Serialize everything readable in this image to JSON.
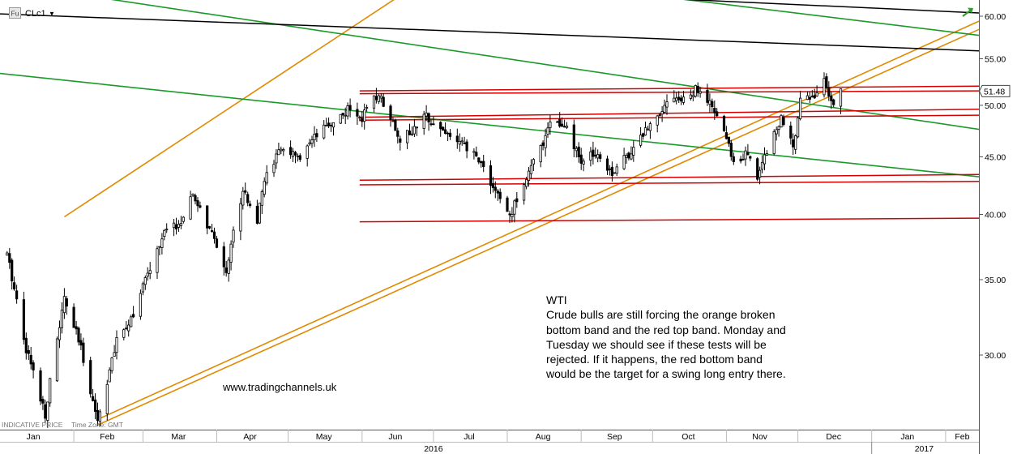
{
  "symbol": {
    "badge": "Fu",
    "ticker": "CLc1",
    "dropdown_glyph": "▼"
  },
  "footer": {
    "price_type": "INDICATIVE PRICE",
    "time_zone": "Time Zone: GMT"
  },
  "watermark": "www.tradingchannels.uk",
  "annotation": {
    "title": "WTI",
    "lines": [
      "Crude bulls are still forcing the orange broken",
      "bottom band and the red top band. Monday and",
      "Tuesday we should see if these tests will be",
      "rejected. If it happens, the red bottom band",
      "would be the target for a swing long entry there."
    ]
  },
  "price_flag": "51.48",
  "colors": {
    "price": "#000000",
    "orange_channel": "#e08a00",
    "green_line": "#1a9a2a",
    "red_band": "#d40000",
    "black_line": "#000000",
    "price_flag_border": "#444444",
    "trend_arrow": "#2fa02f"
  },
  "chart_data": {
    "type": "candlestick",
    "title": "",
    "xlabel": "",
    "ylabel": "",
    "y_scale": "log",
    "ylim": [
      25.0,
      63.0
    ],
    "y_ticks": [
      "60.00",
      "55.00",
      "50.00",
      "45.00",
      "40.00",
      "35.00",
      "30.00"
    ],
    "x_range": [
      "2016-01-01",
      "2017-02-15"
    ],
    "month_labels": [
      {
        "label": "Jan",
        "date": "2016-01-15"
      },
      {
        "label": "Feb",
        "date": "2016-02-15"
      },
      {
        "label": "Mar",
        "date": "2016-03-16"
      },
      {
        "label": "Apr",
        "date": "2016-04-15"
      },
      {
        "label": "May",
        "date": "2016-05-16"
      },
      {
        "label": "Jun",
        "date": "2016-06-15"
      },
      {
        "label": "Jul",
        "date": "2016-07-16"
      },
      {
        "label": "Aug",
        "date": "2016-08-16"
      },
      {
        "label": "Sep",
        "date": "2016-09-15"
      },
      {
        "label": "Oct",
        "date": "2016-10-16"
      },
      {
        "label": "Nov",
        "date": "2016-11-15"
      },
      {
        "label": "Dec",
        "date": "2016-12-16"
      },
      {
        "label": "Jan",
        "date": "2017-01-16"
      },
      {
        "label": "Feb",
        "date": "2017-02-08"
      }
    ],
    "month_boundaries": [
      "2016-02-01",
      "2016-03-01",
      "2016-04-01",
      "2016-05-01",
      "2016-06-01",
      "2016-07-01",
      "2016-08-01",
      "2016-09-01",
      "2016-10-01",
      "2016-11-01",
      "2016-12-01",
      "2017-01-01",
      "2017-02-01"
    ],
    "year_labels": [
      {
        "label": "2016",
        "date": "2016-07-01"
      },
      {
        "label": "2017",
        "date": "2017-01-23"
      }
    ],
    "last_price": 51.48,
    "price_anchors": [
      [
        "2016-01-04",
        36.8
      ],
      [
        "2016-01-12",
        30.4
      ],
      [
        "2016-01-20",
        26.6
      ],
      [
        "2016-01-28",
        33.6
      ],
      [
        "2016-02-03",
        30.9
      ],
      [
        "2016-02-11",
        26.2
      ],
      [
        "2016-02-19",
        30.8
      ],
      [
        "2016-02-26",
        32.7
      ],
      [
        "2016-03-04",
        35.8
      ],
      [
        "2016-03-10",
        38.5
      ],
      [
        "2016-03-18",
        39.5
      ],
      [
        "2016-03-22",
        41.6
      ],
      [
        "2016-03-30",
        38.3
      ],
      [
        "2016-04-05",
        35.7
      ],
      [
        "2016-04-12",
        42.2
      ],
      [
        "2016-04-18",
        39.5
      ],
      [
        "2016-04-22",
        43.7
      ],
      [
        "2016-04-29",
        45.9
      ],
      [
        "2016-05-06",
        44.6
      ],
      [
        "2016-05-12",
        46.7
      ],
      [
        "2016-05-19",
        48.2
      ],
      [
        "2016-05-26",
        49.5
      ],
      [
        "2016-06-01",
        48.8
      ],
      [
        "2016-06-08",
        51.2
      ],
      [
        "2016-06-13",
        48.9
      ],
      [
        "2016-06-17",
        46.7
      ],
      [
        "2016-06-24",
        47.7
      ],
      [
        "2016-06-28",
        49.0
      ],
      [
        "2016-07-05",
        47.5
      ],
      [
        "2016-07-12",
        46.3
      ],
      [
        "2016-07-20",
        44.8
      ],
      [
        "2016-07-27",
        41.9
      ],
      [
        "2016-08-02",
        39.8
      ],
      [
        "2016-08-08",
        42.8
      ],
      [
        "2016-08-15",
        45.7
      ],
      [
        "2016-08-19",
        48.6
      ],
      [
        "2016-08-26",
        47.5
      ],
      [
        "2016-09-01",
        44.4
      ],
      [
        "2016-09-07",
        45.5
      ],
      [
        "2016-09-14",
        43.6
      ],
      [
        "2016-09-21",
        45.3
      ],
      [
        "2016-09-29",
        47.8
      ],
      [
        "2016-10-05",
        49.8
      ],
      [
        "2016-10-10",
        51.0
      ],
      [
        "2016-10-14",
        50.4
      ],
      [
        "2016-10-19",
        51.6
      ],
      [
        "2016-10-24",
        50.5
      ],
      [
        "2016-10-31",
        47.5
      ],
      [
        "2016-11-04",
        44.4
      ],
      [
        "2016-11-09",
        45.4
      ],
      [
        "2016-11-14",
        43.3
      ],
      [
        "2016-11-18",
        45.7
      ],
      [
        "2016-11-24",
        48.7
      ],
      [
        "2016-11-29",
        45.7
      ],
      [
        "2016-12-02",
        50.9
      ],
      [
        "2016-12-07",
        50.8
      ],
      [
        "2016-12-12",
        52.4
      ],
      [
        "2016-12-15",
        50.2
      ],
      [
        "2016-12-19",
        51.5
      ]
    ],
    "trendlines": [
      {
        "group": "orange_channel",
        "from": [
          "2016-01-28",
          39.8
        ],
        "to": [
          "2016-06-19",
          63.0
        ]
      },
      {
        "group": "orange_channel",
        "from": [
          "2016-02-11",
          26.3
        ],
        "to": [
          "2017-02-15",
          59.4
        ]
      },
      {
        "group": "orange_channel",
        "from": [
          "2016-02-11",
          26.0
        ],
        "to": [
          "2017-02-15",
          58.4
        ]
      },
      {
        "group": "green_line",
        "from": [
          "2015-12-31",
          53.4
        ],
        "to": [
          "2017-02-15",
          43.2
        ]
      },
      {
        "group": "green_line",
        "from": [
          "2016-01-28",
          63.0
        ],
        "to": [
          "2017-02-15",
          47.6
        ]
      },
      {
        "group": "green_line",
        "from": [
          "2016-09-20",
          63.0
        ],
        "to": [
          "2017-02-15",
          57.7
        ]
      },
      {
        "group": "green_line",
        "from": [
          "2015-12-31",
          24.7
        ],
        "to": [
          "2016-02-17",
          23.6
        ]
      },
      {
        "group": "black_line",
        "from": [
          "2015-12-31",
          60.3
        ],
        "to": [
          "2017-02-15",
          55.9
        ]
      },
      {
        "group": "black_line",
        "from": [
          "2016-08-11",
          63.0
        ],
        "to": [
          "2017-02-15",
          60.4
        ]
      },
      {
        "group": "red_band",
        "from": [
          "2016-05-31",
          51.5
        ],
        "to": [
          "2017-02-15",
          52.0
        ]
      },
      {
        "group": "red_band",
        "from": [
          "2016-05-31",
          51.2
        ],
        "to": [
          "2017-02-15",
          51.5
        ]
      },
      {
        "group": "red_band",
        "from": [
          "2016-05-31",
          48.8
        ],
        "to": [
          "2017-02-15",
          49.6
        ]
      },
      {
        "group": "red_band",
        "from": [
          "2016-05-31",
          48.5
        ],
        "to": [
          "2017-02-15",
          49.0
        ]
      },
      {
        "group": "red_band",
        "from": [
          "2016-05-31",
          42.9
        ],
        "to": [
          "2017-02-15",
          43.4
        ]
      },
      {
        "group": "red_band",
        "from": [
          "2016-05-31",
          42.5
        ],
        "to": [
          "2017-02-15",
          42.8
        ]
      },
      {
        "group": "red_band",
        "from": [
          "2016-05-31",
          39.4
        ],
        "to": [
          "2017-02-15",
          39.7
        ]
      }
    ]
  }
}
